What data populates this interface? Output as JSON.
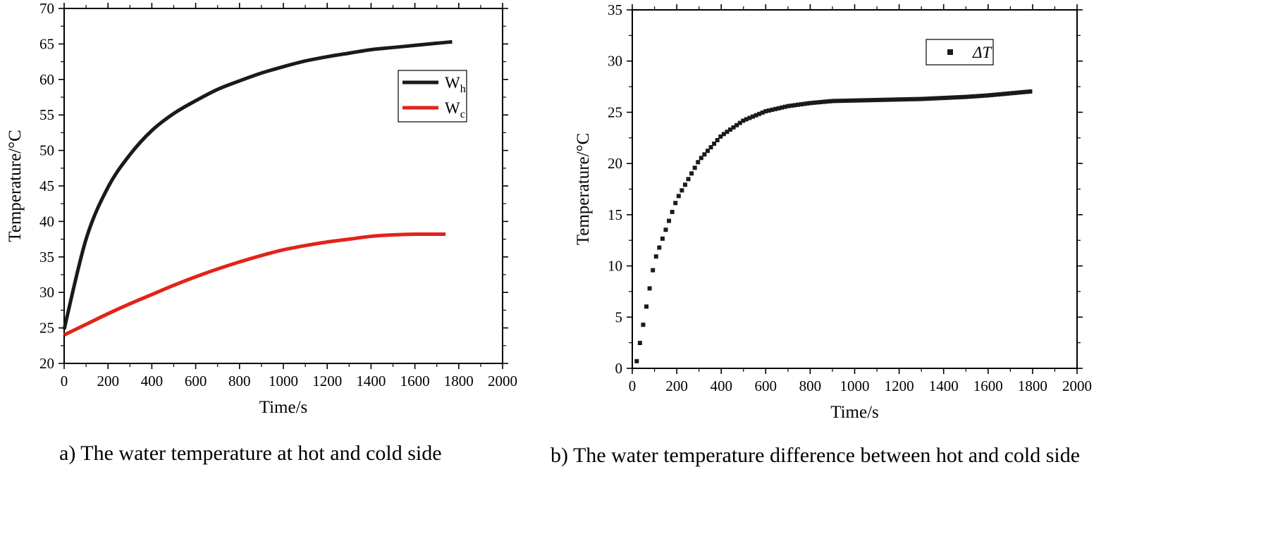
{
  "chart_data": [
    {
      "type": "line",
      "caption": "a) The water temperature at hot and cold side",
      "xlabel": "Time/s",
      "ylabel": "Temperature/°C",
      "xlim": [
        0,
        2000
      ],
      "ylim": [
        20,
        70
      ],
      "xticks": [
        0,
        200,
        400,
        600,
        800,
        1000,
        1200,
        1400,
        1600,
        1800,
        2000
      ],
      "yticks": [
        20,
        25,
        30,
        35,
        40,
        45,
        50,
        55,
        60,
        65,
        70
      ],
      "grid": false,
      "legend_position": "upper-right",
      "series": [
        {
          "name": "W",
          "subscript": "h",
          "color": "#1a1a1a",
          "x": [
            0,
            100,
            200,
            300,
            400,
            500,
            600,
            700,
            800,
            900,
            1000,
            1100,
            1200,
            1300,
            1400,
            1500,
            1600,
            1700,
            1770
          ],
          "y": [
            24.8,
            37.5,
            44.8,
            49.4,
            52.8,
            55.2,
            57.0,
            58.6,
            59.8,
            60.9,
            61.8,
            62.6,
            63.2,
            63.7,
            64.2,
            64.5,
            64.8,
            65.1,
            65.3
          ]
        },
        {
          "name": "W",
          "subscript": "c",
          "color": "#e2231a",
          "x": [
            0,
            100,
            200,
            300,
            400,
            500,
            600,
            700,
            800,
            900,
            1000,
            1100,
            1200,
            1300,
            1400,
            1500,
            1600,
            1700,
            1740
          ],
          "y": [
            24.0,
            25.5,
            27.0,
            28.4,
            29.7,
            31.0,
            32.2,
            33.3,
            34.3,
            35.2,
            36.0,
            36.6,
            37.1,
            37.5,
            37.9,
            38.1,
            38.2,
            38.2,
            38.2
          ]
        }
      ]
    },
    {
      "type": "scatter",
      "caption": "b) The water temperature difference between hot and cold side",
      "xlabel": "Time/s",
      "ylabel": "Temperature/°C",
      "xlim": [
        0,
        2000
      ],
      "ylim": [
        0,
        35
      ],
      "xticks": [
        0,
        200,
        400,
        600,
        800,
        1000,
        1200,
        1400,
        1600,
        1800,
        2000
      ],
      "yticks": [
        0,
        5,
        10,
        15,
        20,
        25,
        30,
        35
      ],
      "grid": false,
      "legend_position": "upper-right",
      "series": [
        {
          "name": "ΔT",
          "color": "#1a1a1a",
          "x": [
            20,
            100,
            200,
            300,
            400,
            500,
            600,
            700,
            800,
            900,
            1000,
            1100,
            1200,
            1300,
            1400,
            1500,
            1600,
            1700,
            1800
          ],
          "y": [
            0.7,
            10.5,
            16.5,
            20.3,
            22.7,
            24.2,
            25.1,
            25.6,
            25.9,
            26.1,
            26.15,
            26.2,
            26.25,
            26.3,
            26.4,
            26.5,
            26.65,
            26.85,
            27.05
          ]
        }
      ]
    }
  ]
}
